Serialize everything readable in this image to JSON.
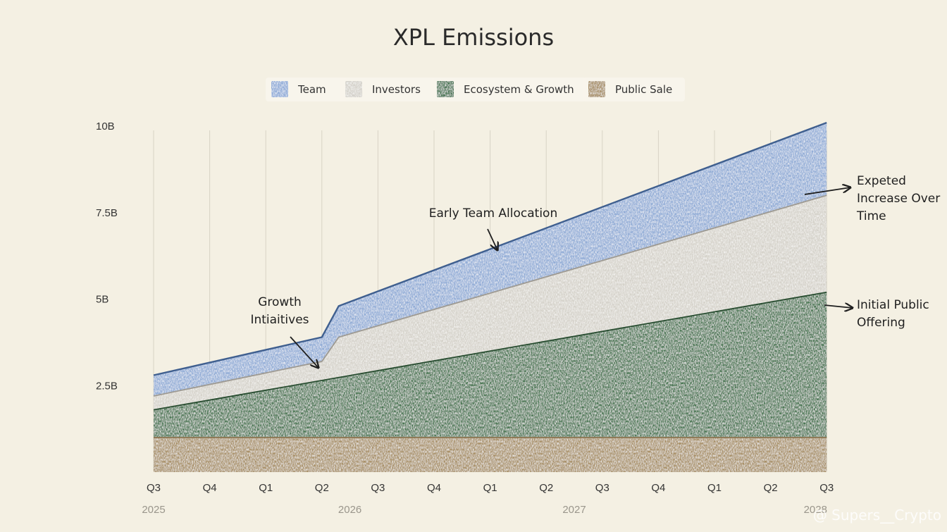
{
  "chart_data": {
    "type": "area",
    "stacked": true,
    "title": "XPL Emissions",
    "x": [
      "Q3",
      "Q4",
      "Q1",
      "Q2",
      "Q3",
      "Q4",
      "Q1",
      "Q2",
      "Q3",
      "Q4",
      "Q1",
      "Q2",
      "Q3"
    ],
    "years": [
      {
        "label": "2025",
        "index": 0
      },
      {
        "label": "2026",
        "index": 3.5
      },
      {
        "label": "2027",
        "index": 7.5
      },
      {
        "label": "2028",
        "index": 11.8
      }
    ],
    "yticks": [
      {
        "value": 2500000000,
        "label": "2.5B"
      },
      {
        "value": 5000000000,
        "label": "5B"
      },
      {
        "value": 7500000000,
        "label": "7.5B"
      },
      {
        "value": 10000000000,
        "label": "10B"
      }
    ],
    "ylim": [
      0,
      10500000000
    ],
    "grid": {
      "vertical": true,
      "horizontal": false
    },
    "legend_position": "top-center",
    "series": [
      {
        "name": "Public Sale",
        "color": "#a48a5e",
        "points": [
          [
            0,
            1000000000
          ],
          [
            12,
            1000000000
          ]
        ]
      },
      {
        "name": "Ecosystem & Growth",
        "color": "#3d6f49",
        "points": [
          [
            0,
            1800000000
          ],
          [
            12,
            5200000000
          ]
        ]
      },
      {
        "name": "Investors",
        "color": "#d3d0c8",
        "points": [
          [
            0,
            2200000000
          ],
          [
            3,
            3200000000
          ],
          [
            3.3,
            3900000000
          ],
          [
            12,
            8000000000
          ]
        ]
      },
      {
        "name": "Team",
        "color": "#8aa8d6",
        "points": [
          [
            0,
            2800000000
          ],
          [
            3,
            3900000000
          ],
          [
            3.3,
            4800000000
          ],
          [
            12,
            10100000000
          ]
        ]
      }
    ],
    "legend_order": [
      "Team",
      "Investors",
      "Ecosystem & Growth",
      "Public Sale"
    ],
    "annotations": [
      {
        "lines": [
          "Growth",
          "Intiaitives"
        ],
        "x": 3.0,
        "y": 3200000000
      },
      {
        "lines": [
          "Early Team Allocation"
        ],
        "x": 6.2,
        "y": 6600000000
      },
      {
        "lines": [
          "Expeted",
          "Increase Over",
          "Time"
        ],
        "x": 12.0,
        "y": 8700000000
      },
      {
        "lines": [
          "Initial Public",
          "Offering"
        ],
        "x": 12.0,
        "y": 5100000000
      }
    ]
  },
  "watermark": "@ Supers__Crypto"
}
